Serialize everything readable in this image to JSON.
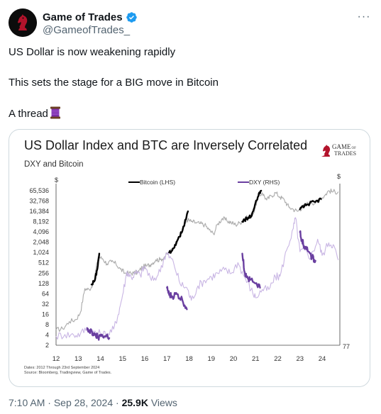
{
  "author": {
    "display_name": "Game of Trades",
    "handle": "@GameofTrades_",
    "avatar_icon": "chess-knight-icon",
    "verified_icon": "verified-badge-icon",
    "verified_color": "#1d9bf0"
  },
  "more_icon": "more-horizontal-icon",
  "more_label": "···",
  "tweet": {
    "line1": "US Dollar is now weakening rapidly",
    "line2": "This sets the stage for a BIG move in Bitcoin",
    "line3": "A thread",
    "thread_icon": "spool-of-thread-icon"
  },
  "chart_data": {
    "type": "line",
    "title": "US Dollar Index and BTC are Inversely Correlated",
    "subtitle": "DXY and Bitcoin",
    "brand": {
      "line1": "GAME",
      "line1_small": "OF",
      "line2": "TRADES"
    },
    "left_axis_unit": "$",
    "right_axis_unit": "$",
    "left_ticks": [
      "65,536",
      "32,768",
      "16,384",
      "8,192",
      "4,096",
      "2,048",
      "1,024",
      "512",
      "256",
      "128",
      "64",
      "32",
      "16",
      "8",
      "4",
      "2"
    ],
    "right_tick": "77",
    "x_ticks": [
      "12",
      "13",
      "14",
      "15",
      "16",
      "17",
      "18",
      "19",
      "20",
      "21",
      "22",
      "23",
      "24"
    ],
    "xlim": [
      2012,
      2024.8
    ],
    "ylim_log2": [
      1,
      16
    ],
    "dxy_ylim": [
      77,
      120
    ],
    "footnote_dates": "Dates: 2012 Through 23rd September 2024",
    "footnote_source": "Source: Bloomberg, Tradingview, Game of Trades.",
    "series": [
      {
        "name": "Bitcoin (LHS)",
        "axis": "left",
        "color": "#aaaaaa",
        "points": [
          [
            2012.0,
            2.5
          ],
          [
            2012.3,
            2.6
          ],
          [
            2012.6,
            3.3
          ],
          [
            2012.9,
            3.5
          ],
          [
            2013.1,
            4.2
          ],
          [
            2013.3,
            6.5
          ],
          [
            2013.5,
            6.4
          ],
          [
            2013.7,
            7.1
          ],
          [
            2013.9,
            9.6
          ],
          [
            2014.1,
            9.4
          ],
          [
            2014.3,
            8.9
          ],
          [
            2014.5,
            9.1
          ],
          [
            2014.7,
            8.9
          ],
          [
            2014.9,
            8.4
          ],
          [
            2015.1,
            8.0
          ],
          [
            2015.3,
            8.0
          ],
          [
            2015.5,
            8.0
          ],
          [
            2015.7,
            8.1
          ],
          [
            2015.9,
            8.6
          ],
          [
            2016.1,
            8.7
          ],
          [
            2016.3,
            8.9
          ],
          [
            2016.5,
            9.3
          ],
          [
            2016.7,
            9.3
          ],
          [
            2016.9,
            9.6
          ],
          [
            2017.1,
            10.0
          ],
          [
            2017.3,
            10.4
          ],
          [
            2017.5,
            11.4
          ],
          [
            2017.7,
            12.1
          ],
          [
            2017.9,
            13.2
          ],
          [
            2018.1,
            13.0
          ],
          [
            2018.3,
            12.9
          ],
          [
            2018.5,
            12.8
          ],
          [
            2018.7,
            12.7
          ],
          [
            2018.9,
            12.2
          ],
          [
            2019.1,
            11.8
          ],
          [
            2019.3,
            12.8
          ],
          [
            2019.5,
            13.3
          ],
          [
            2019.7,
            13.1
          ],
          [
            2019.9,
            12.9
          ],
          [
            2020.1,
            12.7
          ],
          [
            2020.3,
            12.9
          ],
          [
            2020.5,
            13.3
          ],
          [
            2020.7,
            13.4
          ],
          [
            2020.9,
            13.8
          ],
          [
            2021.1,
            15.3
          ],
          [
            2021.3,
            15.8
          ],
          [
            2021.5,
            15.1
          ],
          [
            2021.7,
            15.5
          ],
          [
            2021.9,
            15.8
          ],
          [
            2022.1,
            15.4
          ],
          [
            2022.3,
            15.1
          ],
          [
            2022.5,
            14.4
          ],
          [
            2022.7,
            14.2
          ],
          [
            2022.9,
            14.0
          ],
          [
            2023.1,
            14.4
          ],
          [
            2023.3,
            14.7
          ],
          [
            2023.5,
            14.9
          ],
          [
            2023.7,
            14.8
          ],
          [
            2023.9,
            15.2
          ],
          [
            2024.1,
            15.5
          ],
          [
            2024.3,
            16.0
          ],
          [
            2024.5,
            15.9
          ],
          [
            2024.73,
            15.9
          ]
        ]
      },
      {
        "name": "DXY (RHS)",
        "axis": "right",
        "color": "#c9b6e4",
        "points": [
          [
            2012.0,
            79.5
          ],
          [
            2012.4,
            80.0
          ],
          [
            2012.8,
            79.8
          ],
          [
            2013.1,
            80.2
          ],
          [
            2013.4,
            81.8
          ],
          [
            2013.7,
            80.6
          ],
          [
            2014.0,
            80.2
          ],
          [
            2014.3,
            80.1
          ],
          [
            2014.6,
            81.5
          ],
          [
            2014.8,
            85.5
          ],
          [
            2015.0,
            91.0
          ],
          [
            2015.2,
            97.5
          ],
          [
            2015.4,
            95.8
          ],
          [
            2015.6,
            97.2
          ],
          [
            2015.8,
            96.5
          ],
          [
            2016.0,
            99.0
          ],
          [
            2016.3,
            95.0
          ],
          [
            2016.6,
            96.5
          ],
          [
            2016.9,
            101.5
          ],
          [
            2017.0,
            102.5
          ],
          [
            2017.3,
            100.0
          ],
          [
            2017.6,
            94.0
          ],
          [
            2017.9,
            93.0
          ],
          [
            2018.1,
            89.5
          ],
          [
            2018.4,
            93.5
          ],
          [
            2018.7,
            95.0
          ],
          [
            2019.0,
            96.0
          ],
          [
            2019.3,
            97.0
          ],
          [
            2019.6,
            98.0
          ],
          [
            2019.9,
            97.0
          ],
          [
            2020.2,
            100.0
          ],
          [
            2020.5,
            96.0
          ],
          [
            2020.8,
            92.5
          ],
          [
            2021.0,
            90.2
          ],
          [
            2021.3,
            92.5
          ],
          [
            2021.6,
            92.5
          ],
          [
            2021.9,
            96.0
          ],
          [
            2022.1,
            96.2
          ],
          [
            2022.4,
            103.5
          ],
          [
            2022.7,
            109.5
          ],
          [
            2022.8,
            112.5
          ],
          [
            2023.0,
            103.0
          ],
          [
            2023.2,
            103.5
          ],
          [
            2023.5,
            101.5
          ],
          [
            2023.8,
            106.5
          ],
          [
            2024.0,
            102.0
          ],
          [
            2024.3,
            105.5
          ],
          [
            2024.5,
            105.0
          ],
          [
            2024.73,
            100.7
          ]
        ]
      }
    ],
    "highlight_segments": [
      {
        "series": "Bitcoin (LHS)",
        "color": "#000000",
        "points": [
          [
            2013.6,
            6.9
          ],
          [
            2013.75,
            7.3
          ],
          [
            2013.85,
            8.3
          ],
          [
            2013.95,
            9.9
          ]
        ]
      },
      {
        "series": "Bitcoin (LHS)",
        "color": "#000000",
        "points": [
          [
            2017.1,
            10.0
          ],
          [
            2017.3,
            10.4
          ],
          [
            2017.5,
            11.3
          ],
          [
            2017.7,
            12.1
          ],
          [
            2017.95,
            14.0
          ]
        ]
      },
      {
        "series": "Bitcoin (LHS)",
        "color": "#000000",
        "points": [
          [
            2020.4,
            13.0
          ],
          [
            2020.6,
            13.3
          ],
          [
            2020.8,
            13.5
          ],
          [
            2020.95,
            14.4
          ],
          [
            2021.1,
            15.4
          ],
          [
            2021.25,
            16.0
          ]
        ]
      },
      {
        "series": "Bitcoin (LHS)",
        "color": "#000000",
        "points": [
          [
            2023.0,
            14.2
          ],
          [
            2023.2,
            14.5
          ],
          [
            2023.45,
            14.8
          ],
          [
            2023.7,
            14.9
          ],
          [
            2023.95,
            15.2
          ]
        ]
      },
      {
        "series": "DXY (RHS)",
        "color": "#6a3fa0",
        "points": [
          [
            2013.4,
            81.8
          ],
          [
            2013.5,
            80.6
          ],
          [
            2013.6,
            80.9
          ],
          [
            2013.75,
            79.9
          ],
          [
            2013.9,
            79.2
          ],
          [
            2014.05,
            80.0
          ],
          [
            2014.25,
            79.4
          ],
          [
            2014.4,
            79.0
          ]
        ]
      },
      {
        "series": "DXY (RHS)",
        "color": "#6a3fa0",
        "points": [
          [
            2017.0,
            93.0
          ],
          [
            2017.1,
            91.0
          ],
          [
            2017.25,
            90.5
          ],
          [
            2017.45,
            91.2
          ],
          [
            2017.7,
            89.5
          ],
          [
            2017.9,
            87.0
          ]
        ]
      },
      {
        "series": "DXY (RHS)",
        "color": "#6a3fa0",
        "points": [
          [
            2020.4,
            102.5
          ],
          [
            2020.5,
            97.5
          ],
          [
            2020.6,
            96.0
          ],
          [
            2020.75,
            95.2
          ],
          [
            2021.0,
            94.2
          ],
          [
            2021.2,
            93.0
          ]
        ]
      },
      {
        "series": "DXY (RHS)",
        "color": "#6a3fa0",
        "points": [
          [
            2023.0,
            108.5
          ],
          [
            2023.1,
            106.0
          ],
          [
            2023.2,
            104.5
          ],
          [
            2023.35,
            103.2
          ],
          [
            2023.55,
            101.5
          ],
          [
            2023.7,
            100.5
          ]
        ]
      }
    ]
  },
  "meta": {
    "time": "7:10 AM",
    "separator": "·",
    "date": "Sep 28, 2024",
    "views_count": "25.9K",
    "views_label": "Views"
  }
}
